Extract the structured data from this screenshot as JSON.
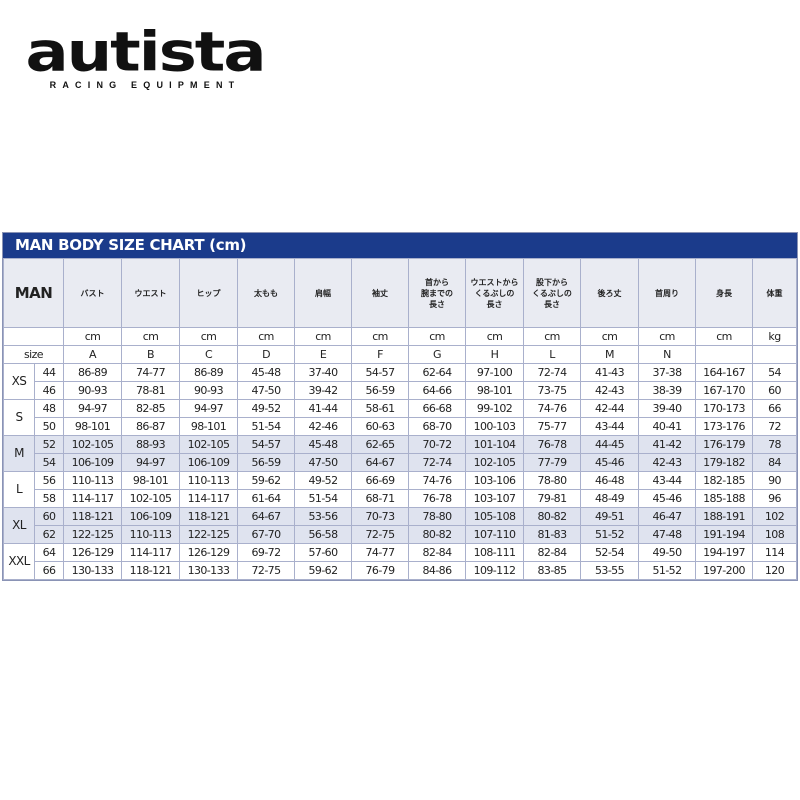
{
  "logo": {
    "name": "autista",
    "tagline": "RACING EQUIPMENT"
  },
  "title": "MAN BODY SIZE CHART (cm)",
  "header": {
    "corner": "MAN",
    "columns": [
      "バスト",
      "ウエスト",
      "ヒップ",
      "太もも",
      "肩幅",
      "袖丈",
      "首から\n腕までの\n長さ",
      "ウエストから\nくるぶしの\n長さ",
      "股下から\nくるぶしの\n長さ",
      "後ろ丈",
      "首周り",
      "身長",
      "体重"
    ],
    "units": [
      "cm",
      "cm",
      "cm",
      "cm",
      "cm",
      "cm",
      "cm",
      "cm",
      "cm",
      "cm",
      "cm",
      "cm",
      "kg"
    ],
    "size_label": "size",
    "letters": [
      "A",
      "B",
      "C",
      "D",
      "E",
      "F",
      "G",
      "H",
      "L",
      "M",
      "N",
      "",
      ""
    ]
  },
  "colors": {
    "title_bar": "#1b3b8b",
    "shaded_row": "#dfe3ef",
    "header_bg": "#e9ebf2"
  },
  "groups": [
    {
      "label": "XS",
      "shaded": false,
      "rows": [
        {
          "size": "44",
          "values": [
            "86-89",
            "74-77",
            "86-89",
            "45-48",
            "37-40",
            "54-57",
            "62-64",
            "97-100",
            "72-74",
            "41-43",
            "37-38",
            "164-167",
            "54"
          ]
        },
        {
          "size": "46",
          "values": [
            "90-93",
            "78-81",
            "90-93",
            "47-50",
            "39-42",
            "56-59",
            "64-66",
            "98-101",
            "73-75",
            "42-43",
            "38-39",
            "167-170",
            "60"
          ]
        }
      ]
    },
    {
      "label": "S",
      "shaded": false,
      "rows": [
        {
          "size": "48",
          "values": [
            "94-97",
            "82-85",
            "94-97",
            "49-52",
            "41-44",
            "58-61",
            "66-68",
            "99-102",
            "74-76",
            "42-44",
            "39-40",
            "170-173",
            "66"
          ]
        },
        {
          "size": "50",
          "values": [
            "98-101",
            "86-87",
            "98-101",
            "51-54",
            "42-46",
            "60-63",
            "68-70",
            "100-103",
            "75-77",
            "43-44",
            "40-41",
            "173-176",
            "72"
          ]
        }
      ]
    },
    {
      "label": "M",
      "shaded": true,
      "rows": [
        {
          "size": "52",
          "values": [
            "102-105",
            "88-93",
            "102-105",
            "54-57",
            "45-48",
            "62-65",
            "70-72",
            "101-104",
            "76-78",
            "44-45",
            "41-42",
            "176-179",
            "78"
          ]
        },
        {
          "size": "54",
          "values": [
            "106-109",
            "94-97",
            "106-109",
            "56-59",
            "47-50",
            "64-67",
            "72-74",
            "102-105",
            "77-79",
            "45-46",
            "42-43",
            "179-182",
            "84"
          ]
        }
      ]
    },
    {
      "label": "L",
      "shaded": false,
      "rows": [
        {
          "size": "56",
          "values": [
            "110-113",
            "98-101",
            "110-113",
            "59-62",
            "49-52",
            "66-69",
            "74-76",
            "103-106",
            "78-80",
            "46-48",
            "43-44",
            "182-185",
            "90"
          ]
        },
        {
          "size": "58",
          "values": [
            "114-117",
            "102-105",
            "114-117",
            "61-64",
            "51-54",
            "68-71",
            "76-78",
            "103-107",
            "79-81",
            "48-49",
            "45-46",
            "185-188",
            "96"
          ]
        }
      ]
    },
    {
      "label": "XL",
      "shaded": true,
      "rows": [
        {
          "size": "60",
          "values": [
            "118-121",
            "106-109",
            "118-121",
            "64-67",
            "53-56",
            "70-73",
            "78-80",
            "105-108",
            "80-82",
            "49-51",
            "46-47",
            "188-191",
            "102"
          ]
        },
        {
          "size": "62",
          "values": [
            "122-125",
            "110-113",
            "122-125",
            "67-70",
            "56-58",
            "72-75",
            "80-82",
            "107-110",
            "81-83",
            "51-52",
            "47-48",
            "191-194",
            "108"
          ]
        }
      ]
    },
    {
      "label": "XXL",
      "shaded": false,
      "rows": [
        {
          "size": "64",
          "values": [
            "126-129",
            "114-117",
            "126-129",
            "69-72",
            "57-60",
            "74-77",
            "82-84",
            "108-111",
            "82-84",
            "52-54",
            "49-50",
            "194-197",
            "114"
          ]
        },
        {
          "size": "66",
          "values": [
            "130-133",
            "118-121",
            "130-133",
            "72-75",
            "59-62",
            "76-79",
            "84-86",
            "109-112",
            "83-85",
            "53-55",
            "51-52",
            "197-200",
            "120"
          ]
        }
      ]
    }
  ]
}
